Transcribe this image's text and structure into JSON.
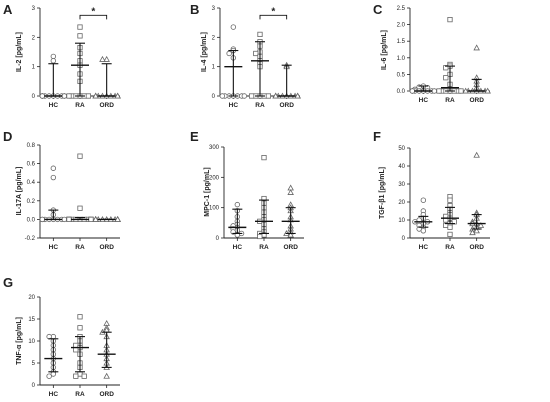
{
  "figure": {
    "colors": {
      "axis": "#222222",
      "marker": "#666666",
      "errorbar": "#111111",
      "sig": "#111111"
    },
    "marker_shapes": {
      "HC": "circle",
      "RA": "square",
      "ORD": "triangle"
    }
  },
  "chart_data": [
    {
      "type": "scatter",
      "panel": "A",
      "ylabel": "IL-2 [pg/mL]",
      "categories": [
        "HC",
        "RA",
        "ORD"
      ],
      "ylim": [
        0,
        3
      ],
      "yticks": [
        0,
        1,
        2,
        3
      ],
      "tick_labels": [
        "0",
        "1",
        "2",
        "3"
      ],
      "zero_dotted": false,
      "series": [
        {
          "category": "HC",
          "values": [
            1.35,
            1.2,
            0,
            0,
            0,
            0,
            0,
            0,
            0,
            0,
            0,
            0
          ],
          "median": 0,
          "lower": 0,
          "upper": 1.1
        },
        {
          "category": "RA",
          "values": [
            2.35,
            2.05,
            1.65,
            1.45,
            1.2,
            1.05,
            0.75,
            0.5,
            0,
            0,
            0,
            0,
            0,
            0
          ],
          "median": 1.05,
          "lower": 0,
          "upper": 1.8
        },
        {
          "category": "ORD",
          "values": [
            1.25,
            1.25,
            0,
            0,
            0,
            0,
            0,
            0,
            0,
            0,
            0,
            0
          ],
          "median": 0,
          "lower": 0,
          "upper": 1.1
        }
      ],
      "significance": [
        {
          "from": "RA",
          "to": "ORD",
          "y": 2.75,
          "label": "*"
        }
      ]
    },
    {
      "type": "scatter",
      "panel": "B",
      "ylabel": "IL-4 [pg/mL]",
      "categories": [
        "HC",
        "RA",
        "ORD"
      ],
      "ylim": [
        0,
        3
      ],
      "yticks": [
        0,
        1,
        2,
        3
      ],
      "tick_labels": [
        "0",
        "1",
        "2",
        "3"
      ],
      "zero_dotted": false,
      "series": [
        {
          "category": "HC",
          "values": [
            2.35,
            1.6,
            1.55,
            1.45,
            1.3,
            0,
            0,
            0,
            0,
            0,
            0,
            0
          ],
          "median": 1.0,
          "lower": 0,
          "upper": 1.55
        },
        {
          "category": "RA",
          "values": [
            2.1,
            1.85,
            1.7,
            1.5,
            1.45,
            1.35,
            1.2,
            1.1,
            1.0,
            0,
            0,
            0,
            0,
            0
          ],
          "median": 1.2,
          "lower": 0,
          "upper": 1.85
        },
        {
          "category": "ORD",
          "values": [
            1.05,
            1.0,
            0,
            0,
            0,
            0,
            0,
            0,
            0,
            0,
            0,
            0
          ],
          "median": 0,
          "lower": 0,
          "upper": 1.05
        }
      ],
      "significance": [
        {
          "from": "RA",
          "to": "ORD",
          "y": 2.75,
          "label": "*"
        }
      ]
    },
    {
      "type": "scatter",
      "panel": "C",
      "ylabel": "IL-6 [pg/mL]",
      "categories": [
        "HC",
        "RA",
        "ORD"
      ],
      "ylim": [
        0,
        2.5
      ],
      "yticks": [
        0,
        0.5,
        1.0,
        1.5,
        2.0,
        2.5
      ],
      "tick_labels": [
        "0.0",
        "0.5",
        "1.0",
        "1.5",
        "2.0",
        "2.5"
      ],
      "zero_dotted": false,
      "series": [
        {
          "category": "HC",
          "values": [
            0.15,
            0.12,
            0.1,
            0.05,
            0,
            0,
            0,
            0,
            0,
            0,
            0,
            0
          ],
          "median": 0,
          "lower": 0,
          "upper": 0.15
        },
        {
          "category": "RA",
          "values": [
            2.15,
            0.8,
            0.75,
            0.7,
            0.5,
            0.4,
            0.2,
            0,
            0,
            0,
            0,
            0,
            0,
            0
          ],
          "median": 0.1,
          "lower": 0,
          "upper": 0.75
        },
        {
          "category": "ORD",
          "values": [
            1.3,
            0.4,
            0.3,
            0.2,
            0.1,
            0,
            0,
            0,
            0,
            0,
            0,
            0
          ],
          "median": 0,
          "lower": 0,
          "upper": 0.35
        }
      ],
      "significance": []
    },
    {
      "type": "scatter",
      "panel": "D",
      "ylabel": "IL-17A [pg/mL]",
      "categories": [
        "HC",
        "RA",
        "ORD"
      ],
      "ylim": [
        -0.2,
        0.8
      ],
      "yticks": [
        -0.2,
        0,
        0.2,
        0.4,
        0.6,
        0.8
      ],
      "tick_labels": [
        "-0.2",
        "0.0",
        "0.2",
        "0.4",
        "0.6",
        "0.8"
      ],
      "zero_dotted": true,
      "series": [
        {
          "category": "HC",
          "values": [
            0.55,
            0.45,
            0.1,
            0.05,
            0,
            0,
            0,
            0,
            0,
            0,
            0,
            0
          ],
          "median": 0,
          "lower": 0,
          "upper": 0.1
        },
        {
          "category": "RA",
          "values": [
            0.68,
            0.12,
            0,
            0,
            0,
            0,
            0,
            0,
            0,
            0,
            0,
            0,
            0,
            0
          ],
          "median": 0,
          "lower": 0,
          "upper": 0.02
        },
        {
          "category": "ORD",
          "values": [
            0,
            0,
            0,
            0,
            0,
            0,
            0,
            0,
            0,
            0,
            0,
            0
          ],
          "median": 0,
          "lower": 0,
          "upper": 0
        }
      ],
      "significance": []
    },
    {
      "type": "scatter",
      "panel": "E",
      "ylabel": "MPC-1 [pg/mL]",
      "categories": [
        "HC",
        "RA",
        "ORD"
      ],
      "ylim": [
        0,
        300
      ],
      "yticks": [
        0,
        100,
        200,
        300
      ],
      "tick_labels": [
        "0",
        "100",
        "200",
        "300"
      ],
      "zero_dotted": false,
      "series": [
        {
          "category": "HC",
          "values": [
            110,
            90,
            70,
            55,
            45,
            40,
            35,
            30,
            25,
            20,
            15,
            10
          ],
          "median": 35,
          "lower": 15,
          "upper": 95
        },
        {
          "category": "RA",
          "values": [
            265,
            130,
            115,
            100,
            85,
            70,
            60,
            55,
            45,
            30,
            20,
            15,
            10,
            5
          ],
          "median": 55,
          "lower": 15,
          "upper": 125
        },
        {
          "category": "ORD",
          "values": [
            165,
            150,
            110,
            100,
            90,
            70,
            60,
            40,
            30,
            20,
            15,
            10
          ],
          "median": 55,
          "lower": 15,
          "upper": 100
        }
      ],
      "significance": []
    },
    {
      "type": "scatter",
      "panel": "F",
      "ylabel": "TGF-β1 [pg/mL]",
      "categories": [
        "HC",
        "RA",
        "ORD"
      ],
      "ylim": [
        0,
        50
      ],
      "yticks": [
        0,
        10,
        20,
        30,
        40,
        50
      ],
      "tick_labels": [
        "0",
        "10",
        "20",
        "30",
        "40",
        "50"
      ],
      "zero_dotted": false,
      "series": [
        {
          "category": "HC",
          "values": [
            21,
            15,
            13,
            11,
            10,
            9,
            9,
            8,
            7,
            6,
            5,
            4
          ],
          "median": 9,
          "lower": 6,
          "upper": 12
        },
        {
          "category": "RA",
          "values": [
            23,
            21,
            18,
            16,
            14,
            13,
            12,
            11,
            10,
            9,
            8,
            7,
            6,
            2
          ],
          "median": 11,
          "lower": 8,
          "upper": 17
        },
        {
          "category": "ORD",
          "values": [
            46,
            14,
            13,
            11,
            9,
            8,
            8,
            7,
            6,
            5,
            4,
            3
          ],
          "median": 8,
          "lower": 5,
          "upper": 13
        }
      ],
      "significance": []
    },
    {
      "type": "scatter",
      "panel": "G",
      "ylabel": "TNF-α [pg/mL]",
      "categories": [
        "HC",
        "RA",
        "ORD"
      ],
      "ylim": [
        0,
        20
      ],
      "yticks": [
        0,
        5,
        10,
        15,
        20
      ],
      "tick_labels": [
        "0",
        "5",
        "10",
        "15",
        "20"
      ],
      "zero_dotted": false,
      "series": [
        {
          "category": "HC",
          "values": [
            11,
            11,
            10,
            9,
            8,
            7,
            6,
            5,
            4,
            3,
            2.5,
            2
          ],
          "median": 6,
          "lower": 3,
          "upper": 10.5
        },
        {
          "category": "RA",
          "values": [
            15.5,
            13,
            11,
            10,
            9,
            9,
            8.5,
            8,
            7,
            5,
            4,
            2.5,
            2,
            2
          ],
          "median": 8.5,
          "lower": 3,
          "upper": 11
        },
        {
          "category": "ORD",
          "values": [
            14,
            13,
            12.5,
            12,
            11,
            9,
            8,
            7,
            6,
            5,
            4,
            2
          ],
          "median": 7,
          "lower": 4,
          "upper": 12
        }
      ],
      "significance": []
    }
  ]
}
